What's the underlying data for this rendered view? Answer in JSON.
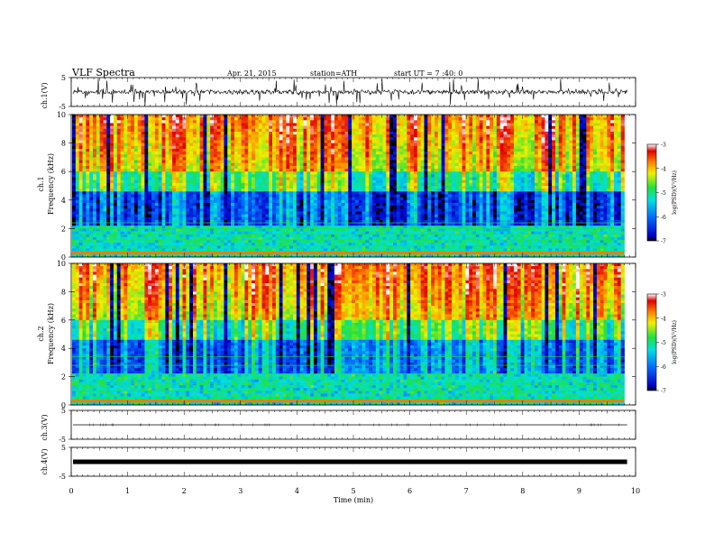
{
  "header": {
    "title": "VLF Spectra",
    "date": "Apr. 21, 2015",
    "station": "station=ATH",
    "start": "start  UT  =   7 :40: 0"
  },
  "chart_data": [
    {
      "type": "line",
      "id": "ch1",
      "ylabel": "ch.1(V)",
      "ylim": [
        -5,
        5
      ],
      "y_ticks": [
        "5",
        "-5"
      ],
      "description_series": "noisy waveform centered near 0 V"
    },
    {
      "type": "heatmap",
      "id": "spec1",
      "ylabel_top": "ch.1",
      "ylabel": "Frequency  (kHz)",
      "ylim": [
        0,
        10
      ],
      "y_ticks": [
        "0",
        "2",
        "4",
        "6",
        "8",
        "10"
      ],
      "xlim": [
        0,
        10
      ],
      "data_end_min": 9.8,
      "colorbar": {
        "label": "log(PSD)(V²/Hz)",
        "ticks": [
          "-3",
          "-4",
          "-5",
          "-6",
          "-7"
        ],
        "range": [
          -7,
          -3
        ]
      }
    },
    {
      "type": "heatmap",
      "id": "spec2",
      "ylabel_top": "ch.2",
      "ylabel": "Frequency  (kHz)",
      "ylim": [
        0,
        10
      ],
      "y_ticks": [
        "0",
        "2",
        "4",
        "6",
        "8",
        "10"
      ],
      "xlim": [
        0,
        10
      ],
      "data_end_min": 9.8,
      "colorbar": {
        "label": "log(PSD)(V²/Hz)",
        "ticks": [
          "-3",
          "-4",
          "-5",
          "-6",
          "-7"
        ],
        "range": [
          -7,
          -3
        ]
      }
    },
    {
      "type": "line",
      "id": "ch3",
      "ylabel": "ch.3(V)",
      "ylim": [
        -5,
        5
      ],
      "y_ticks": [
        "5",
        "-5"
      ],
      "flat_value": 0
    },
    {
      "type": "line",
      "id": "ch4",
      "ylabel": "ch.4(V)",
      "ylim": [
        -5,
        5
      ],
      "y_ticks": [
        "5",
        "-5"
      ],
      "flat_value": 0
    }
  ],
  "xaxis": {
    "label": "Time  (min)",
    "ticks": [
      "0",
      "1",
      "2",
      "3",
      "4",
      "5",
      "6",
      "7",
      "8",
      "9",
      "10"
    ]
  }
}
